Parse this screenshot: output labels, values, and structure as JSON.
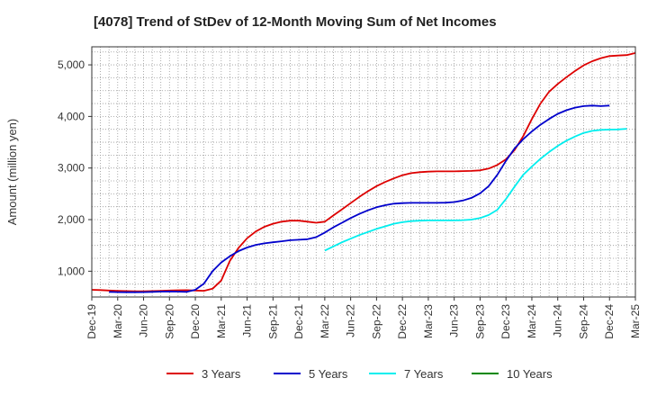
{
  "chart_data": {
    "type": "line",
    "title": "[4078]  Trend of StDev of 12-Month Moving Sum of Net Incomes",
    "ylabel": "Amount (million yen)",
    "xlabel": "",
    "ylim": [
      500,
      5350
    ],
    "yticks": [
      1000,
      2000,
      3000,
      4000,
      5000
    ],
    "ytick_labels": [
      "1,000",
      "2,000",
      "3,000",
      "4,000",
      "5,000"
    ],
    "x_tick_labels": [
      "Dec-19",
      "Mar-20",
      "Jun-20",
      "Sep-20",
      "Dec-20",
      "Mar-21",
      "Jun-21",
      "Sep-21",
      "Dec-21",
      "Mar-22",
      "Jun-22",
      "Sep-22",
      "Dec-22",
      "Mar-23",
      "Jun-23",
      "Sep-23",
      "Dec-23",
      "Mar-24",
      "Jun-24",
      "Sep-24",
      "Dec-24",
      "Mar-25"
    ],
    "grid": true,
    "legend_position": "bottom",
    "series": [
      {
        "name": "3 Years",
        "color": "#dd0000",
        "start_month_index": 0,
        "values": [
          640,
          635,
          625,
          620,
          615,
          612,
          612,
          615,
          620,
          625,
          630,
          632,
          625,
          620,
          660,
          820,
          1200,
          1450,
          1640,
          1770,
          1860,
          1920,
          1960,
          1980,
          1980,
          1960,
          1940,
          1960,
          2080,
          2200,
          2320,
          2440,
          2550,
          2650,
          2730,
          2800,
          2860,
          2900,
          2920,
          2930,
          2935,
          2935,
          2935,
          2940,
          2945,
          2955,
          2990,
          3060,
          3170,
          3350,
          3620,
          3950,
          4250,
          4480,
          4630,
          4760,
          4880,
          4990,
          5070,
          5130,
          5170,
          5180,
          5190,
          5230
        ]
      },
      {
        "name": "5 Years",
        "color": "#0000cc",
        "start_month_index": 2,
        "values": [
          600,
          595,
          592,
          592,
          595,
          600,
          605,
          608,
          605,
          600,
          640,
          760,
          1000,
          1170,
          1290,
          1390,
          1460,
          1510,
          1540,
          1560,
          1580,
          1600,
          1610,
          1620,
          1660,
          1750,
          1850,
          1940,
          2030,
          2110,
          2180,
          2240,
          2280,
          2310,
          2320,
          2325,
          2325,
          2325,
          2325,
          2328,
          2340,
          2370,
          2420,
          2510,
          2650,
          2870,
          3140,
          3380,
          3560,
          3710,
          3840,
          3950,
          4050,
          4120,
          4170,
          4200,
          4210,
          4200,
          4210
        ]
      },
      {
        "name": "7 Years",
        "color": "#00eeee",
        "start_month_index": 27,
        "values": [
          1400,
          1480,
          1560,
          1630,
          1700,
          1760,
          1820,
          1870,
          1920,
          1950,
          1970,
          1980,
          1985,
          1985,
          1985,
          1985,
          1990,
          2000,
          2030,
          2090,
          2190,
          2400,
          2640,
          2870,
          3030,
          3180,
          3310,
          3430,
          3530,
          3610,
          3680,
          3720,
          3740,
          3745,
          3748,
          3760
        ]
      },
      {
        "name": "10 Years",
        "color": "#008800",
        "start_month_index": 0,
        "values": []
      }
    ]
  }
}
